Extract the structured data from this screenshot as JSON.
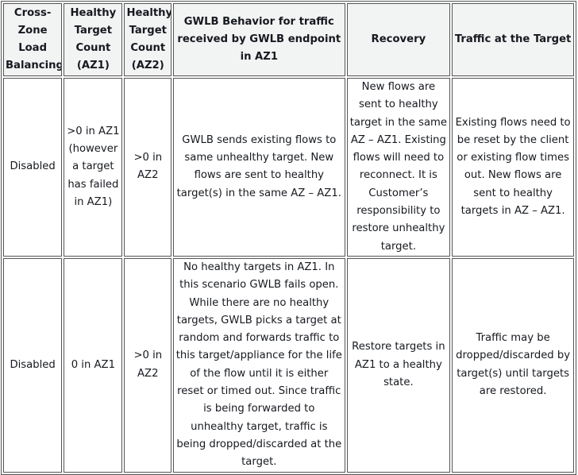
{
  "table": {
    "headers": [
      "Cross-Zone Load Balancing",
      "Healthy Target Count (AZ1)",
      "Healthy Target Count (AZ2)",
      "GWLB Behavior for traffic received by GWLB endpoint in AZ1",
      "Recovery",
      "Traffic at the Target"
    ],
    "rows": [
      [
        "Disabled",
        ">0 in AZ1 (however a target has failed in AZ1)",
        ">0 in AZ2",
        "GWLB sends existing flows to same unhealthy target. New flows are sent to healthy target(s) in the same AZ – AZ1.",
        "New flows are sent to healthy target in the same AZ – AZ1. Existing flows will need to reconnect. It is Customer’s responsibility to restore unhealthy target.",
        "Existing flows need to be reset by the client or existing flow times out. New flows are sent to healthy targets in AZ – AZ1."
      ],
      [
        "Disabled",
        "0 in AZ1",
        ">0 in AZ2",
        "No healthy targets in AZ1. In this scenario GWLB fails open. While there are no healthy targets, GWLB picks a target at random and forwards traffic to this target/appliance for the life of the flow until it is either reset or timed out. Since traffic is being forwarded to unhealthy target, traffic is being dropped/discarded at the target.",
        "Restore targets in AZ1 to a healthy state.",
        "Traffic may be dropped/discarded by target(s) until targets are restored."
      ]
    ]
  }
}
